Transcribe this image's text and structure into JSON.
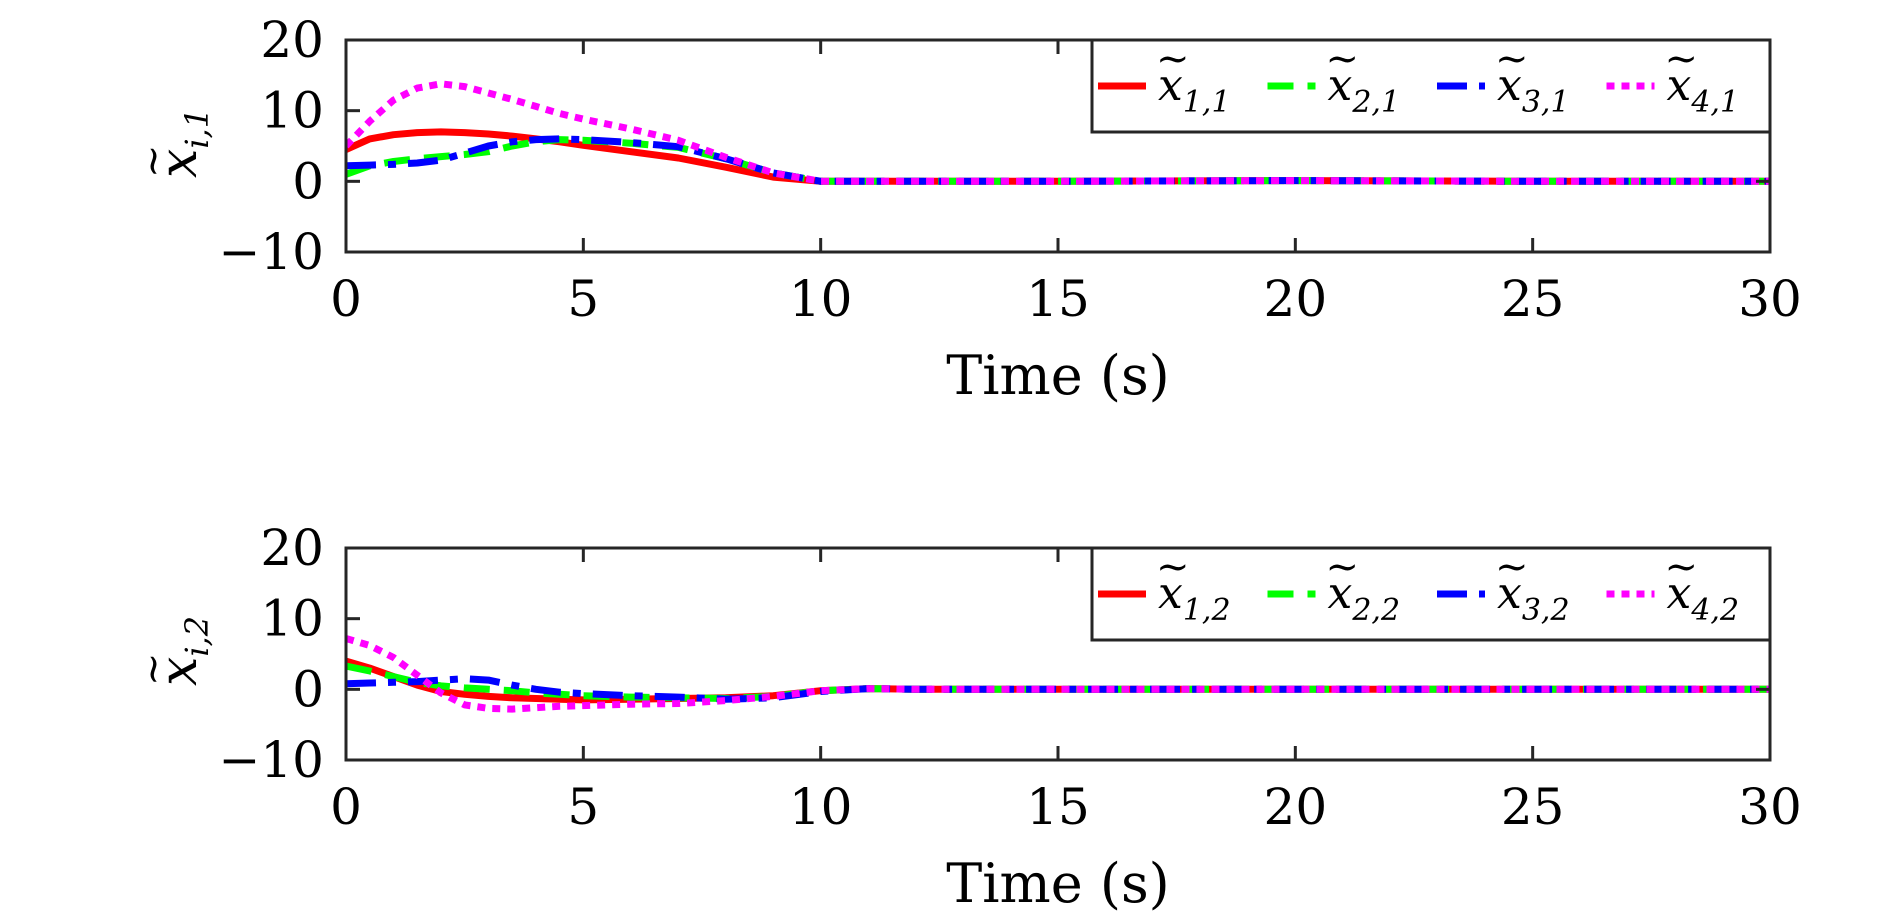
{
  "figure": {
    "subplots": [
      {
        "ylabel": {
          "base": "x",
          "sub": "i,1"
        },
        "xlabel": "Time (s)",
        "legend": [
          {
            "base": "x",
            "sub": "1,1"
          },
          {
            "base": "x",
            "sub": "2,1"
          },
          {
            "base": "x",
            "sub": "3,1"
          },
          {
            "base": "x",
            "sub": "4,1"
          }
        ],
        "xticks": [
          "0",
          "5",
          "10",
          "15",
          "20",
          "25",
          "30"
        ],
        "yticks": [
          "−10",
          "0",
          "10",
          "20"
        ]
      },
      {
        "ylabel": {
          "base": "x",
          "sub": "i,2"
        },
        "xlabel": "Time (s)",
        "legend": [
          {
            "base": "x",
            "sub": "1,2"
          },
          {
            "base": "x",
            "sub": "2,2"
          },
          {
            "base": "x",
            "sub": "3,2"
          },
          {
            "base": "x",
            "sub": "4,2"
          }
        ],
        "xticks": [
          "0",
          "5",
          "10",
          "15",
          "20",
          "25",
          "30"
        ],
        "yticks": [
          "−10",
          "0",
          "10",
          "20"
        ]
      }
    ]
  },
  "chart_data": [
    {
      "type": "line",
      "xlabel": "Time (s)",
      "ylabel": "x̃_{i,1}",
      "xlim": [
        0,
        30
      ],
      "ylim": [
        -10,
        20
      ],
      "xticks": [
        0,
        5,
        10,
        15,
        20,
        25,
        30
      ],
      "yticks": [
        -10,
        0,
        10,
        20
      ],
      "grid": false,
      "legend_position": "top-right",
      "x": [
        0,
        0.5,
        1,
        1.5,
        2,
        2.5,
        3,
        3.5,
        4,
        4.5,
        5,
        6,
        7,
        8,
        9,
        10,
        12,
        15,
        20,
        25,
        30
      ],
      "series": [
        {
          "name": "x̃_{1,1}",
          "color": "#ff0000",
          "dash": "solid",
          "values": [
            4.5,
            6.0,
            6.6,
            6.9,
            7.0,
            6.9,
            6.7,
            6.4,
            6.0,
            5.6,
            5.1,
            4.2,
            3.3,
            2.0,
            0.6,
            0.0,
            0.0,
            0.0,
            0.1,
            0.0,
            0.0
          ]
        },
        {
          "name": "x̃_{2,1}",
          "color": "#00ff00",
          "dash": "dashed",
          "values": [
            1.0,
            2.2,
            2.8,
            3.2,
            3.5,
            3.8,
            4.2,
            5.0,
            5.6,
            5.9,
            5.8,
            5.4,
            4.8,
            3.2,
            1.2,
            0.0,
            0.0,
            0.0,
            0.1,
            0.0,
            0.0
          ]
        },
        {
          "name": "x̃_{3,1}",
          "color": "#0000ff",
          "dash": "dashdot",
          "values": [
            2.2,
            2.3,
            2.4,
            2.6,
            3.0,
            4.0,
            5.0,
            5.6,
            5.9,
            6.0,
            5.9,
            5.5,
            4.9,
            3.2,
            1.2,
            0.0,
            0.0,
            0.0,
            0.1,
            0.0,
            0.0
          ]
        },
        {
          "name": "x̃_{4,1}",
          "color": "#ff00ff",
          "dash": "dotted",
          "values": [
            5.0,
            8.5,
            11.5,
            13.2,
            13.8,
            13.4,
            12.5,
            11.6,
            10.6,
            9.6,
            8.8,
            7.4,
            5.8,
            3.4,
            1.2,
            0.0,
            0.0,
            0.0,
            0.1,
            0.0,
            0.0
          ]
        }
      ]
    },
    {
      "type": "line",
      "xlabel": "Time (s)",
      "ylabel": "x̃_{i,2}",
      "xlim": [
        0,
        30
      ],
      "ylim": [
        -10,
        20
      ],
      "xticks": [
        0,
        5,
        10,
        15,
        20,
        25,
        30
      ],
      "yticks": [
        -10,
        0,
        10,
        20
      ],
      "grid": false,
      "legend_position": "top-right",
      "x": [
        0,
        0.5,
        1,
        1.5,
        2,
        2.5,
        3,
        3.5,
        4,
        4.5,
        5,
        6,
        7,
        8,
        9,
        10,
        11,
        12,
        15,
        20,
        25,
        30
      ],
      "series": [
        {
          "name": "x̃_{1,2}",
          "color": "#ff0000",
          "dash": "solid",
          "values": [
            4.0,
            3.0,
            1.8,
            0.6,
            -0.3,
            -0.7,
            -1.0,
            -1.2,
            -1.3,
            -1.4,
            -1.5,
            -1.4,
            -1.3,
            -1.2,
            -0.9,
            -0.2,
            0.1,
            0.0,
            0.0,
            0.0,
            0.0,
            0.0
          ]
        },
        {
          "name": "x̃_{2,2}",
          "color": "#00ff00",
          "dash": "dashed",
          "values": [
            3.3,
            2.6,
            1.8,
            1.0,
            0.5,
            0.2,
            0.0,
            -0.2,
            -0.5,
            -0.7,
            -0.9,
            -1.1,
            -1.2,
            -1.3,
            -1.0,
            -0.2,
            0.1,
            0.0,
            0.0,
            0.0,
            0.0,
            0.0
          ]
        },
        {
          "name": "x̃_{3,2}",
          "color": "#0000ff",
          "dash": "dashdot",
          "values": [
            0.8,
            0.9,
            1.0,
            1.1,
            1.3,
            1.5,
            1.3,
            0.6,
            0.0,
            -0.4,
            -0.6,
            -0.9,
            -1.1,
            -1.4,
            -1.2,
            -0.3,
            0.1,
            0.0,
            0.0,
            0.0,
            0.0,
            0.0
          ]
        },
        {
          "name": "x̃_{4,2}",
          "color": "#ff00ff",
          "dash": "dotted",
          "values": [
            7.2,
            6.2,
            4.5,
            2.0,
            -0.5,
            -2.2,
            -2.7,
            -2.8,
            -2.6,
            -2.4,
            -2.3,
            -2.1,
            -2.0,
            -1.6,
            -1.0,
            -0.2,
            0.1,
            0.0,
            0.0,
            0.0,
            0.0,
            0.0
          ]
        }
      ]
    }
  ]
}
